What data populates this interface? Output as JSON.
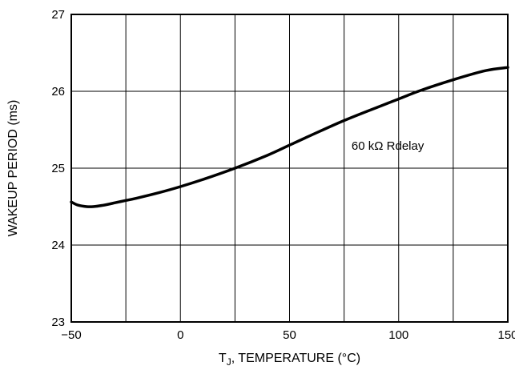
{
  "chart_data": {
    "type": "line",
    "title": "",
    "xlabel_main": "T",
    "xlabel_sub": "J",
    "xlabel_rest": ", TEMPERATURE (°C)",
    "ylabel": "WAKEUP PERIOD (ms)",
    "xlim": [
      -50,
      150
    ],
    "ylim": [
      23,
      27
    ],
    "x_ticks": [
      -50,
      0,
      50,
      100,
      150
    ],
    "x_tick_labels": [
      "−50",
      "0",
      "50",
      "100",
      "150"
    ],
    "x_gridlines": [
      -50,
      -25,
      0,
      25,
      50,
      75,
      100,
      125,
      150
    ],
    "y_ticks": [
      23,
      24,
      25,
      26,
      27
    ],
    "y_tick_labels": [
      "23",
      "24",
      "25",
      "26",
      "27"
    ],
    "grid": true,
    "annotation": "60 kΩ Rdelay",
    "annotation_x": 95,
    "annotation_y": 25.24,
    "line_color": "#000000",
    "series": [
      {
        "x": [
          -50,
          -47,
          -43,
          -40,
          -35,
          -30,
          -25,
          -20,
          -10,
          0,
          10,
          25,
          40,
          50,
          60,
          75,
          90,
          100,
          110,
          125,
          140,
          150
        ],
        "values": [
          24.56,
          24.52,
          24.5,
          24.5,
          24.52,
          24.55,
          24.58,
          24.61,
          24.68,
          24.76,
          24.85,
          25.0,
          25.17,
          25.3,
          25.43,
          25.62,
          25.79,
          25.9,
          26.01,
          26.15,
          26.27,
          26.31
        ]
      }
    ]
  }
}
